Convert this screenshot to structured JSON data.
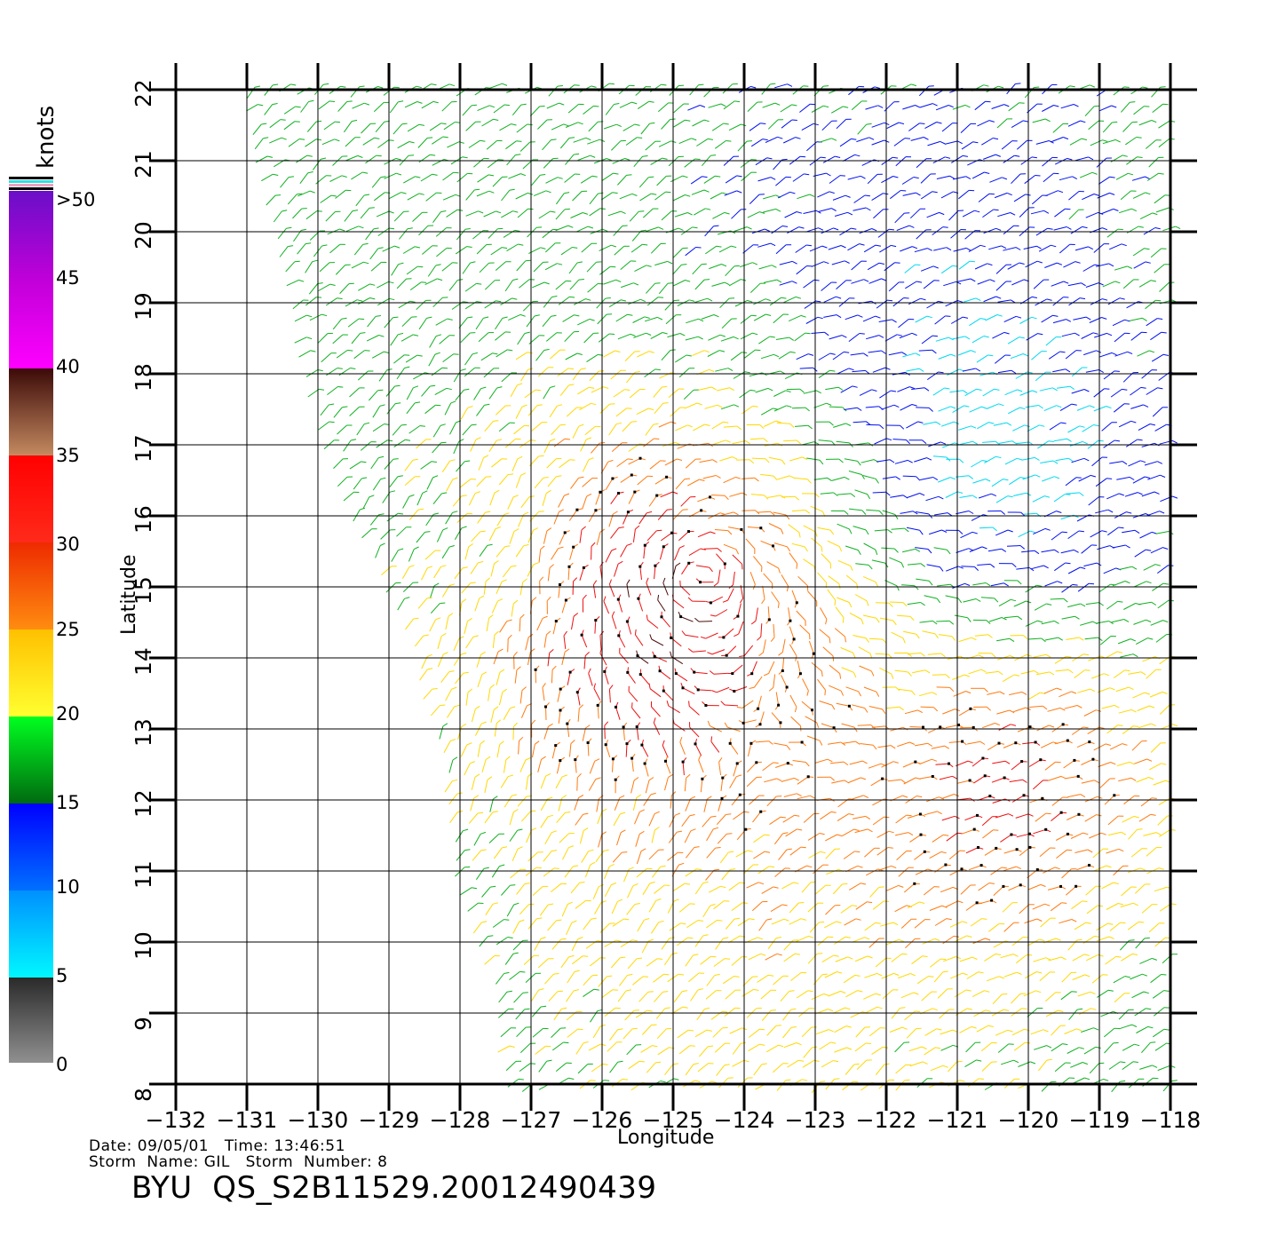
{
  "legend": {
    "unit": "knots",
    "labels": [
      ">50",
      "45",
      "40",
      "35",
      "30",
      "25",
      "20",
      "15",
      "10",
      "5",
      "0"
    ],
    "bands": [
      {
        "from": 50,
        "to": 40,
        "colors": [
          "#6a0fc8",
          "#ff00ff"
        ]
      },
      {
        "from": 40,
        "to": 35,
        "colors": [
          "#3c0a08",
          "#c48a60"
        ]
      },
      {
        "from": 35,
        "to": 30,
        "colors": [
          "#ff0000",
          "#ff2a1a"
        ]
      },
      {
        "from": 30,
        "to": 25,
        "colors": [
          "#ee2a00",
          "#ff8c10"
        ]
      },
      {
        "from": 25,
        "to": 20,
        "colors": [
          "#ffc000",
          "#ffff30"
        ]
      },
      {
        "from": 20,
        "to": 15,
        "colors": [
          "#00ff20",
          "#006a10"
        ]
      },
      {
        "from": 15,
        "to": 10,
        "colors": [
          "#0000ff",
          "#0070ff"
        ]
      },
      {
        "from": 10,
        "to": 5,
        "colors": [
          "#0090ff",
          "#00f8ff"
        ]
      },
      {
        "from": 5,
        "to": 0,
        "colors": [
          "#2a2a2a",
          "#909090"
        ]
      }
    ]
  },
  "axes": {
    "xlabel": "Longitude",
    "ylabel": "Latitude",
    "lon_ticks": [
      -132,
      -131,
      -130,
      -129,
      -128,
      -127,
      -126,
      -125,
      -124,
      -123,
      -122,
      -121,
      -120,
      -119,
      -118
    ],
    "lat_ticks": [
      8,
      9,
      10,
      11,
      12,
      13,
      14,
      15,
      16,
      17,
      18,
      19,
      20,
      21,
      22
    ],
    "lon_range": [
      -132,
      -118
    ],
    "lat_range": [
      8,
      22
    ],
    "grid": true
  },
  "wind_field": {
    "swath_west_edge": [
      [
        -130.9,
        22
      ],
      [
        -130.0,
        18
      ],
      [
        -129.6,
        16.5
      ],
      [
        -128.6,
        14.5
      ],
      [
        -128.1,
        12.5
      ],
      [
        -127.9,
        11
      ],
      [
        -127.4,
        9.5
      ],
      [
        -127.2,
        8
      ]
    ],
    "lows": [
      {
        "lon": -124.6,
        "lat": 15.2
      }
    ]
  },
  "footer": {
    "line1": "Date: 09/05/01   Time: 13:46:51",
    "line2": "Storm  Name: GIL   Storm  Number: 8",
    "product": "BYU  QS_S2B11529.20012490439"
  }
}
